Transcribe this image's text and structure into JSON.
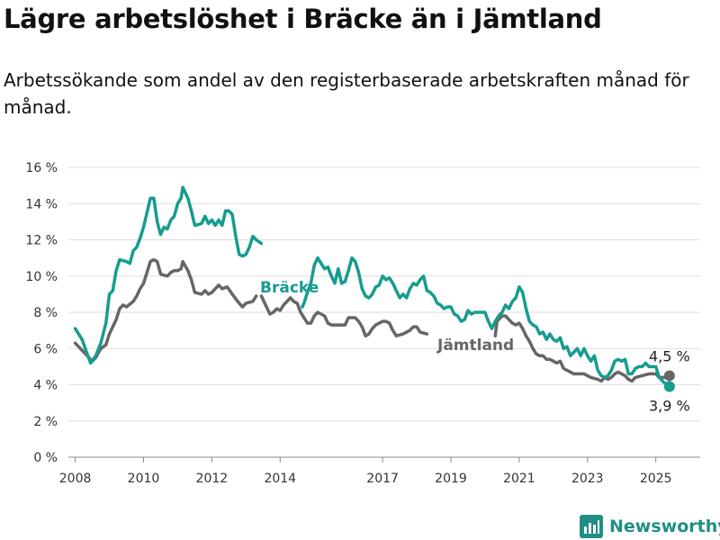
{
  "title": "Lägre arbetslöshet i Bräcke än i Jämtland",
  "subtitle": "Arbetssökande som andel av den registerbaserade arbetskraften månad för månad.",
  "brand": {
    "name": "Newsworthy",
    "color": "#1f8f84"
  },
  "chart_data": {
    "type": "line",
    "title": "Lägre arbetslöshet i Bräcke än i Jämtland",
    "ylim": [
      0,
      16
    ],
    "xlim": [
      2007.8,
      2026.3
    ],
    "yticks": [
      0,
      2,
      4,
      6,
      8,
      10,
      12,
      14,
      16
    ],
    "ytick_labels": [
      "0 %",
      "2 %",
      "4 %",
      "6 %",
      "8 %",
      "10 %",
      "12 %",
      "14 %",
      "16 %"
    ],
    "xticks": [
      2008,
      2010,
      2012,
      2014,
      2017,
      2019,
      2021,
      2023,
      2025
    ],
    "xtick_labels": [
      "2008",
      "2010",
      "2012",
      "2014",
      "2017",
      "2019",
      "2021",
      "2023",
      "2025"
    ],
    "grid": "horizontal",
    "series": [
      {
        "name": "Bräcke",
        "color": "#159c8f",
        "end_label": "3,9 %",
        "points": [
          [
            2008.0,
            7.1
          ],
          [
            2008.2,
            6.5
          ],
          [
            2008.35,
            5.7
          ],
          [
            2008.45,
            5.2
          ],
          [
            2008.6,
            5.6
          ],
          [
            2008.75,
            6.3
          ],
          [
            2008.9,
            7.4
          ],
          [
            2009.0,
            9.0
          ],
          [
            2009.1,
            9.2
          ],
          [
            2009.2,
            10.3
          ],
          [
            2009.3,
            10.9
          ],
          [
            2009.5,
            10.8
          ],
          [
            2009.6,
            10.7
          ],
          [
            2009.7,
            11.4
          ],
          [
            2009.8,
            11.6
          ],
          [
            2009.9,
            12.1
          ],
          [
            2010.0,
            12.7
          ],
          [
            2010.1,
            13.5
          ],
          [
            2010.2,
            14.3
          ],
          [
            2010.3,
            14.3
          ],
          [
            2010.4,
            13.0
          ],
          [
            2010.5,
            12.3
          ],
          [
            2010.6,
            12.7
          ],
          [
            2010.7,
            12.6
          ],
          [
            2010.8,
            13.1
          ],
          [
            2010.9,
            13.3
          ],
          [
            2011.0,
            14.0
          ],
          [
            2011.1,
            14.3
          ],
          [
            2011.15,
            14.9
          ],
          [
            2011.3,
            14.3
          ],
          [
            2011.4,
            13.6
          ],
          [
            2011.5,
            12.8
          ],
          [
            2011.7,
            12.9
          ],
          [
            2011.8,
            13.3
          ],
          [
            2011.9,
            12.9
          ],
          [
            2012.0,
            13.1
          ],
          [
            2012.1,
            12.8
          ],
          [
            2012.2,
            13.1
          ],
          [
            2012.3,
            12.8
          ],
          [
            2012.4,
            13.6
          ],
          [
            2012.5,
            13.6
          ],
          [
            2012.6,
            13.4
          ],
          [
            2012.7,
            12.2
          ],
          [
            2012.8,
            11.2
          ],
          [
            2012.9,
            11.1
          ],
          [
            2013.0,
            11.2
          ],
          [
            2013.1,
            11.6
          ],
          [
            2013.2,
            12.2
          ],
          [
            2013.3,
            12.0
          ],
          [
            2013.45,
            11.8
          ]
        ],
        "points2": [
          [
            2014.65,
            8.3
          ],
          [
            2014.7,
            8.5
          ],
          [
            2014.8,
            9.1
          ],
          [
            2014.9,
            9.6
          ],
          [
            2015.0,
            10.6
          ],
          [
            2015.1,
            11.0
          ],
          [
            2015.2,
            10.7
          ],
          [
            2015.3,
            10.4
          ],
          [
            2015.4,
            10.5
          ],
          [
            2015.5,
            10.0
          ],
          [
            2015.6,
            9.6
          ],
          [
            2015.7,
            10.4
          ],
          [
            2015.8,
            9.6
          ],
          [
            2015.9,
            9.7
          ],
          [
            2016.0,
            10.3
          ],
          [
            2016.1,
            11.0
          ],
          [
            2016.2,
            10.8
          ],
          [
            2016.3,
            10.2
          ],
          [
            2016.4,
            9.3
          ],
          [
            2016.5,
            8.9
          ],
          [
            2016.6,
            8.8
          ],
          [
            2016.7,
            9.0
          ],
          [
            2016.8,
            9.4
          ],
          [
            2016.9,
            9.5
          ],
          [
            2017.0,
            10.0
          ],
          [
            2017.1,
            9.8
          ],
          [
            2017.2,
            9.9
          ],
          [
            2017.3,
            9.6
          ],
          [
            2017.4,
            9.2
          ],
          [
            2017.5,
            8.8
          ],
          [
            2017.6,
            9.0
          ],
          [
            2017.7,
            8.8
          ],
          [
            2017.8,
            9.3
          ],
          [
            2017.9,
            9.6
          ],
          [
            2018.0,
            9.5
          ],
          [
            2018.1,
            9.8
          ],
          [
            2018.2,
            10.0
          ],
          [
            2018.3,
            9.2
          ],
          [
            2018.4,
            9.1
          ],
          [
            2018.5,
            8.9
          ],
          [
            2018.6,
            8.5
          ],
          [
            2018.7,
            8.4
          ],
          [
            2018.8,
            8.2
          ],
          [
            2018.9,
            8.3
          ],
          [
            2019.0,
            8.3
          ],
          [
            2019.1,
            7.9
          ],
          [
            2019.2,
            7.8
          ],
          [
            2019.3,
            7.5
          ],
          [
            2019.4,
            7.6
          ],
          [
            2019.5,
            8.1
          ],
          [
            2019.6,
            7.9
          ],
          [
            2019.7,
            8.0
          ],
          [
            2019.8,
            8.0
          ],
          [
            2019.9,
            8.0
          ],
          [
            2020.0,
            8.0
          ],
          [
            2020.1,
            7.5
          ],
          [
            2020.2,
            7.1
          ],
          [
            2020.3,
            7.5
          ],
          [
            2020.4,
            7.8
          ],
          [
            2020.5,
            8.0
          ],
          [
            2020.6,
            8.4
          ],
          [
            2020.7,
            8.2
          ],
          [
            2020.8,
            8.6
          ],
          [
            2020.9,
            8.8
          ],
          [
            2021.0,
            9.4
          ],
          [
            2021.1,
            9.1
          ],
          [
            2021.2,
            8.2
          ],
          [
            2021.3,
            7.5
          ],
          [
            2021.4,
            7.3
          ],
          [
            2021.5,
            7.2
          ],
          [
            2021.6,
            6.8
          ],
          [
            2021.7,
            6.9
          ],
          [
            2021.8,
            6.5
          ],
          [
            2021.9,
            6.8
          ],
          [
            2022.0,
            6.5
          ],
          [
            2022.1,
            6.4
          ],
          [
            2022.2,
            6.6
          ],
          [
            2022.3,
            6.0
          ],
          [
            2022.4,
            6.1
          ],
          [
            2022.5,
            5.6
          ],
          [
            2022.6,
            5.8
          ],
          [
            2022.7,
            6.0
          ],
          [
            2022.8,
            5.6
          ],
          [
            2022.9,
            6.0
          ],
          [
            2023.0,
            5.6
          ],
          [
            2023.1,
            5.3
          ],
          [
            2023.2,
            5.6
          ],
          [
            2023.3,
            4.8
          ],
          [
            2023.4,
            4.5
          ],
          [
            2023.5,
            4.4
          ],
          [
            2023.6,
            4.5
          ],
          [
            2023.7,
            4.8
          ],
          [
            2023.8,
            5.3
          ],
          [
            2023.9,
            5.4
          ],
          [
            2024.0,
            5.3
          ],
          [
            2024.1,
            5.4
          ],
          [
            2024.2,
            4.6
          ],
          [
            2024.3,
            4.6
          ],
          [
            2024.4,
            4.9
          ],
          [
            2024.5,
            5.0
          ],
          [
            2024.6,
            5.0
          ],
          [
            2024.7,
            5.2
          ],
          [
            2024.8,
            5.0
          ],
          [
            2024.9,
            5.0
          ],
          [
            2025.0,
            5.0
          ],
          [
            2025.1,
            4.4
          ],
          [
            2025.25,
            4.1
          ],
          [
            2025.4,
            3.9
          ]
        ]
      },
      {
        "name": "Jämtland",
        "color": "#666666",
        "end_label": "4,5 %",
        "points": [
          [
            2008.0,
            6.3
          ],
          [
            2008.2,
            5.9
          ],
          [
            2008.35,
            5.6
          ],
          [
            2008.5,
            5.3
          ],
          [
            2008.6,
            5.5
          ],
          [
            2008.75,
            6.0
          ],
          [
            2008.9,
            6.2
          ],
          [
            2009.0,
            6.8
          ],
          [
            2009.2,
            7.6
          ],
          [
            2009.3,
            8.2
          ],
          [
            2009.4,
            8.4
          ],
          [
            2009.5,
            8.3
          ],
          [
            2009.7,
            8.6
          ],
          [
            2009.8,
            8.9
          ],
          [
            2009.9,
            9.3
          ],
          [
            2010.0,
            9.6
          ],
          [
            2010.1,
            10.2
          ],
          [
            2010.2,
            10.8
          ],
          [
            2010.3,
            10.9
          ],
          [
            2010.4,
            10.8
          ],
          [
            2010.5,
            10.1
          ],
          [
            2010.7,
            10.0
          ],
          [
            2010.8,
            10.2
          ],
          [
            2010.9,
            10.3
          ],
          [
            2011.0,
            10.3
          ],
          [
            2011.1,
            10.4
          ],
          [
            2011.15,
            10.8
          ],
          [
            2011.3,
            10.3
          ],
          [
            2011.4,
            9.8
          ],
          [
            2011.5,
            9.1
          ],
          [
            2011.7,
            9.0
          ],
          [
            2011.8,
            9.2
          ],
          [
            2011.9,
            9.0
          ],
          [
            2012.0,
            9.1
          ],
          [
            2012.1,
            9.3
          ],
          [
            2012.2,
            9.5
          ],
          [
            2012.3,
            9.3
          ],
          [
            2012.45,
            9.4
          ],
          [
            2012.6,
            9.0
          ],
          [
            2012.8,
            8.5
          ],
          [
            2012.9,
            8.3
          ],
          [
            2013.0,
            8.5
          ],
          [
            2013.2,
            8.6
          ],
          [
            2013.3,
            8.9
          ]
        ],
        "points2": [
          [
            2013.45,
            8.9
          ],
          [
            2013.6,
            8.3
          ],
          [
            2013.7,
            7.9
          ],
          [
            2013.8,
            8.0
          ],
          [
            2013.9,
            8.2
          ],
          [
            2014.0,
            8.1
          ],
          [
            2014.1,
            8.4
          ],
          [
            2014.2,
            8.6
          ],
          [
            2014.3,
            8.8
          ],
          [
            2014.4,
            8.6
          ],
          [
            2014.5,
            8.5
          ],
          [
            2014.6,
            8.0
          ],
          [
            2014.7,
            7.7
          ],
          [
            2014.8,
            7.4
          ],
          [
            2014.9,
            7.4
          ],
          [
            2015.0,
            7.8
          ],
          [
            2015.1,
            8.0
          ],
          [
            2015.2,
            7.9
          ],
          [
            2015.3,
            7.8
          ],
          [
            2015.4,
            7.4
          ],
          [
            2015.5,
            7.3
          ],
          [
            2015.7,
            7.3
          ],
          [
            2015.9,
            7.3
          ],
          [
            2016.0,
            7.7
          ],
          [
            2016.2,
            7.7
          ],
          [
            2016.3,
            7.5
          ],
          [
            2016.4,
            7.2
          ],
          [
            2016.5,
            6.7
          ],
          [
            2016.6,
            6.8
          ],
          [
            2016.7,
            7.1
          ],
          [
            2016.8,
            7.3
          ],
          [
            2016.9,
            7.4
          ],
          [
            2017.0,
            7.5
          ],
          [
            2017.1,
            7.5
          ],
          [
            2017.2,
            7.4
          ],
          [
            2017.3,
            7.0
          ],
          [
            2017.4,
            6.7
          ],
          [
            2017.6,
            6.8
          ],
          [
            2017.7,
            6.9
          ],
          [
            2017.8,
            7.0
          ],
          [
            2017.9,
            7.2
          ],
          [
            2018.0,
            7.2
          ],
          [
            2018.1,
            6.9
          ],
          [
            2018.3,
            6.8
          ]
        ],
        "points3": [
          [
            2020.3,
            6.7
          ],
          [
            2020.35,
            7.5
          ],
          [
            2020.5,
            7.8
          ],
          [
            2020.6,
            7.8
          ],
          [
            2020.7,
            7.6
          ],
          [
            2020.8,
            7.4
          ],
          [
            2020.9,
            7.3
          ],
          [
            2021.0,
            7.4
          ],
          [
            2021.1,
            7.1
          ],
          [
            2021.2,
            6.7
          ],
          [
            2021.3,
            6.4
          ],
          [
            2021.4,
            6.0
          ],
          [
            2021.5,
            5.7
          ],
          [
            2021.6,
            5.6
          ],
          [
            2021.7,
            5.6
          ],
          [
            2021.8,
            5.4
          ],
          [
            2021.9,
            5.4
          ],
          [
            2022.0,
            5.3
          ],
          [
            2022.1,
            5.2
          ],
          [
            2022.2,
            5.3
          ],
          [
            2022.3,
            4.9
          ],
          [
            2022.4,
            4.8
          ],
          [
            2022.5,
            4.7
          ],
          [
            2022.6,
            4.6
          ],
          [
            2022.8,
            4.6
          ],
          [
            2022.9,
            4.6
          ],
          [
            2023.0,
            4.5
          ],
          [
            2023.1,
            4.4
          ],
          [
            2023.3,
            4.3
          ],
          [
            2023.4,
            4.2
          ],
          [
            2023.5,
            4.4
          ],
          [
            2023.6,
            4.3
          ],
          [
            2023.7,
            4.4
          ],
          [
            2023.8,
            4.6
          ],
          [
            2023.9,
            4.7
          ],
          [
            2024.0,
            4.6
          ],
          [
            2024.1,
            4.5
          ],
          [
            2024.2,
            4.3
          ],
          [
            2024.3,
            4.2
          ],
          [
            2024.4,
            4.4
          ],
          [
            2024.6,
            4.5
          ],
          [
            2024.8,
            4.6
          ],
          [
            2025.0,
            4.6
          ],
          [
            2025.1,
            4.4
          ],
          [
            2025.25,
            4.4
          ],
          [
            2025.4,
            4.5
          ]
        ]
      }
    ]
  }
}
